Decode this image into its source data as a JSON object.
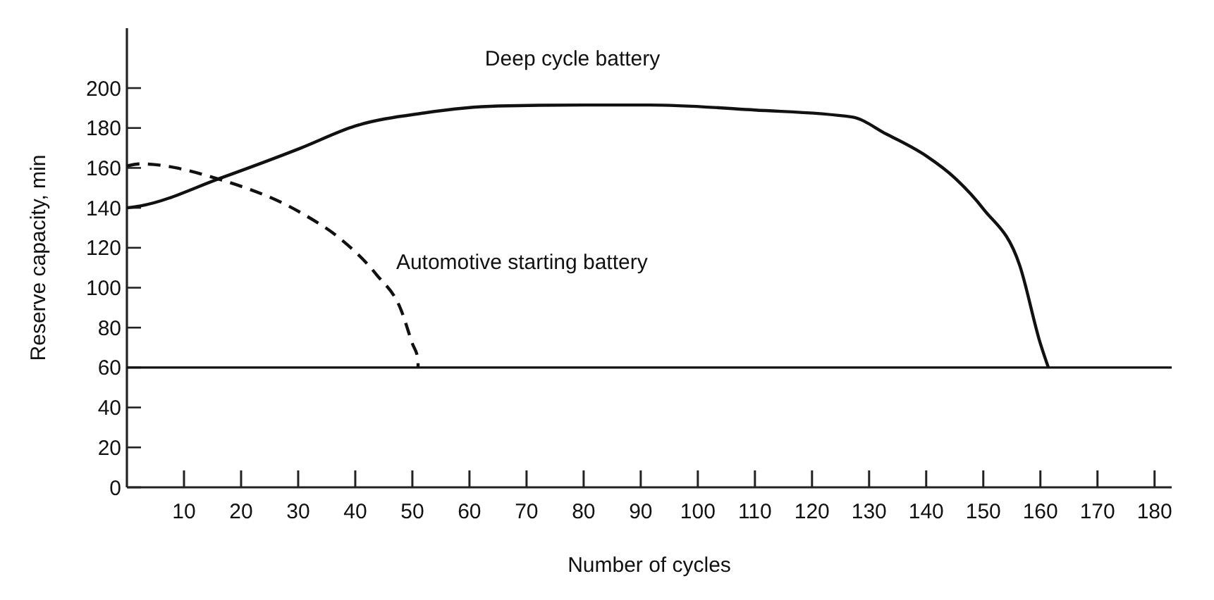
{
  "chart_data": {
    "type": "line",
    "xlabel": "Number of cycles",
    "ylabel": "Reserve capacity, min",
    "xlim": [
      0,
      183
    ],
    "ylim": [
      0,
      230
    ],
    "xticks": [
      10,
      20,
      30,
      40,
      50,
      60,
      70,
      80,
      90,
      100,
      110,
      120,
      130,
      140,
      150,
      160,
      170,
      180
    ],
    "yticks": [
      0,
      20,
      40,
      60,
      80,
      100,
      120,
      140,
      160,
      180,
      200
    ],
    "grid": false,
    "ref_lines": [
      {
        "axis": "y",
        "value": 60,
        "color": "#111111"
      }
    ],
    "series": [
      {
        "name": "Deep cycle battery",
        "color": "#111111",
        "line_style": "solid",
        "x": [
          0,
          2.4,
          16.5,
          30.5,
          40,
          52,
          65,
          80,
          91.5,
          110,
          127,
          133,
          140,
          145,
          150,
          156.4,
          160,
          161.4
        ],
        "values": [
          140,
          141,
          155,
          170,
          181,
          187.5,
          191,
          191.5,
          191.5,
          189,
          185.5,
          177,
          166,
          155,
          139.5,
          111,
          72,
          60
        ]
      },
      {
        "name": "Automotive starting battery",
        "color": "#111111",
        "line_style": "dashed",
        "x": [
          0,
          2.4,
          16.5,
          30.5,
          37.6,
          43.7,
          48,
          50,
          51,
          51
        ],
        "values": [
          161,
          162,
          154,
          137.5,
          124,
          106.6,
          89,
          72,
          64,
          60
        ]
      }
    ]
  }
}
